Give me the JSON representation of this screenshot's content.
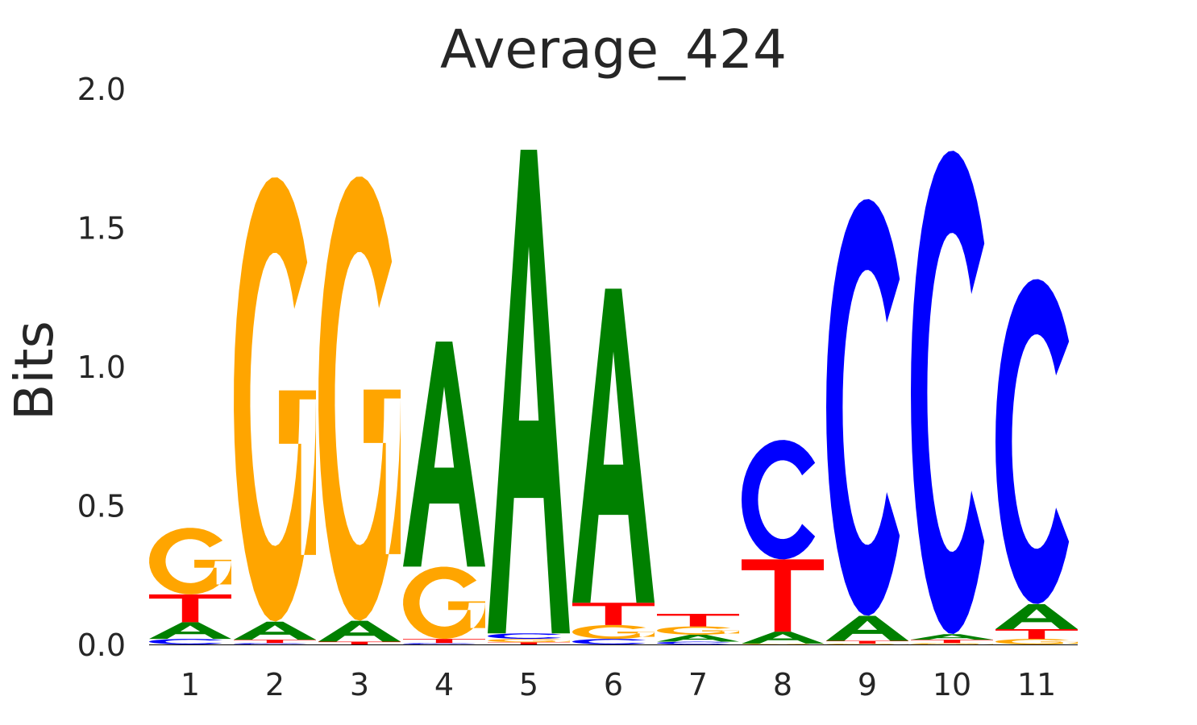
{
  "chart_data": {
    "type": "sequence-logo",
    "title": "Average_424",
    "ylabel": "Bits",
    "xlabel": "",
    "ylim": [
      0,
      2.0
    ],
    "yticks": [
      "0.0",
      "0.5",
      "1.0",
      "1.5",
      "2.0"
    ],
    "categories": [
      "1",
      "2",
      "3",
      "4",
      "5",
      "6",
      "7",
      "8",
      "9",
      "10",
      "11"
    ],
    "grid": false,
    "colors": {
      "A": "#008000",
      "C": "#0000ff",
      "G": "#ffa500",
      "T": "#ff0000"
    },
    "positions": [
      [
        {
          "base": "C",
          "bits": 0.02
        },
        {
          "base": "A",
          "bits": 0.06
        },
        {
          "base": "T",
          "bits": 0.1
        },
        {
          "base": "G",
          "bits": 0.24
        }
      ],
      [
        {
          "base": "C",
          "bits": 0.005
        },
        {
          "base": "T",
          "bits": 0.012
        },
        {
          "base": "A",
          "bits": 0.065
        },
        {
          "base": "G",
          "bits": 1.6
        }
      ],
      [
        {
          "base": "T",
          "bits": 0.01
        },
        {
          "base": "A",
          "bits": 0.075
        },
        {
          "base": "G",
          "bits": 1.6
        }
      ],
      [
        {
          "base": "C",
          "bits": 0.005
        },
        {
          "base": "T",
          "bits": 0.015
        },
        {
          "base": "G",
          "bits": 0.26
        },
        {
          "base": "A",
          "bits": 0.81
        }
      ],
      [
        {
          "base": "T",
          "bits": 0.008
        },
        {
          "base": "G",
          "bits": 0.012
        },
        {
          "base": "C",
          "bits": 0.02
        },
        {
          "base": "A",
          "bits": 1.74
        }
      ],
      [
        {
          "base": "C",
          "bits": 0.02
        },
        {
          "base": "G",
          "bits": 0.05
        },
        {
          "base": "T",
          "bits": 0.08
        },
        {
          "base": "A",
          "bits": 1.13
        }
      ],
      [
        {
          "base": "C",
          "bits": 0.01
        },
        {
          "base": "A",
          "bits": 0.025
        },
        {
          "base": "G",
          "bits": 0.03
        },
        {
          "base": "T",
          "bits": 0.045
        }
      ],
      [
        {
          "base": "G",
          "bits": 0.003
        },
        {
          "base": "A",
          "bits": 0.043
        },
        {
          "base": "T",
          "bits": 0.26
        },
        {
          "base": "C",
          "bits": 0.43
        }
      ],
      [
        {
          "base": "G",
          "bits": 0.003
        },
        {
          "base": "T",
          "bits": 0.01
        },
        {
          "base": "A",
          "bits": 0.09
        },
        {
          "base": "C",
          "bits": 1.5
        }
      ],
      [
        {
          "base": "G",
          "bits": 0.005
        },
        {
          "base": "T",
          "bits": 0.012
        },
        {
          "base": "A",
          "bits": 0.02
        },
        {
          "base": "C",
          "bits": 1.74
        }
      ],
      [
        {
          "base": "G",
          "bits": 0.02
        },
        {
          "base": "T",
          "bits": 0.035
        },
        {
          "base": "A",
          "bits": 0.09
        },
        {
          "base": "C",
          "bits": 1.17
        }
      ]
    ]
  }
}
